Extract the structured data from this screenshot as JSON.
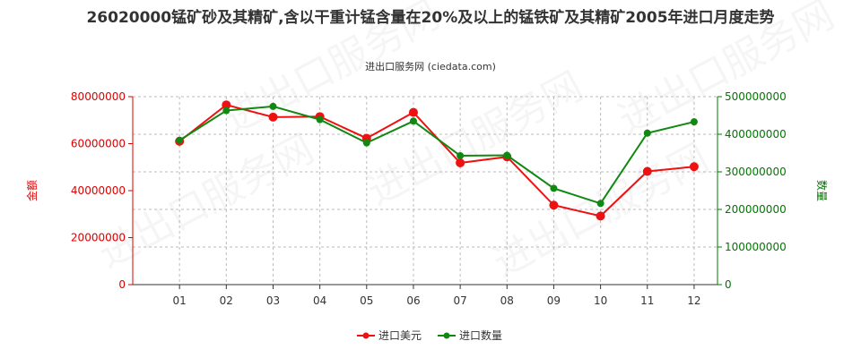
{
  "title": "26020000锰矿砂及其精矿,含以干重计锰含量在20%及以上的锰铁矿及其精矿2005年进口月度走势",
  "subtitle": "进出口服务网 (ciedata.com)",
  "watermark": "进出口服务网",
  "colors": {
    "left_axis": "#dd0000",
    "right_axis": "#007700",
    "series_usd": "#ee1111",
    "series_qty": "#118811",
    "grid": "#bbbbbb",
    "axis": "#333333"
  },
  "chart_data": {
    "type": "line",
    "categories": [
      "01",
      "02",
      "03",
      "04",
      "05",
      "06",
      "07",
      "08",
      "09",
      "10",
      "11",
      "12"
    ],
    "left_axis": {
      "label": "金额",
      "ylim": [
        0,
        80000000
      ],
      "ticks": [
        0,
        20000000,
        40000000,
        60000000,
        80000000
      ],
      "tick_labels": [
        "0",
        "20000000",
        "40000000",
        "60000000",
        "80000000"
      ]
    },
    "right_axis": {
      "label": "数量",
      "ylim": [
        0,
        500000000
      ],
      "ticks": [
        0,
        100000000,
        200000000,
        300000000,
        400000000,
        500000000
      ],
      "tick_labels": [
        "0",
        "100000000",
        "200000000",
        "300000000",
        "400000000",
        "500000000"
      ]
    },
    "series": [
      {
        "name": "进口美元",
        "axis": "left",
        "values": [
          61000000,
          76500000,
          71300000,
          71500000,
          62300000,
          73300000,
          51800000,
          54400000,
          33800000,
          29200000,
          48200000,
          50200000
        ]
      },
      {
        "name": "进口数量",
        "axis": "right",
        "values": [
          384000000,
          463000000,
          474000000,
          439000000,
          377000000,
          435000000,
          343000000,
          344000000,
          256000000,
          216000000,
          403000000,
          433000000
        ]
      }
    ],
    "grid": true,
    "legend_position": "bottom-center"
  }
}
